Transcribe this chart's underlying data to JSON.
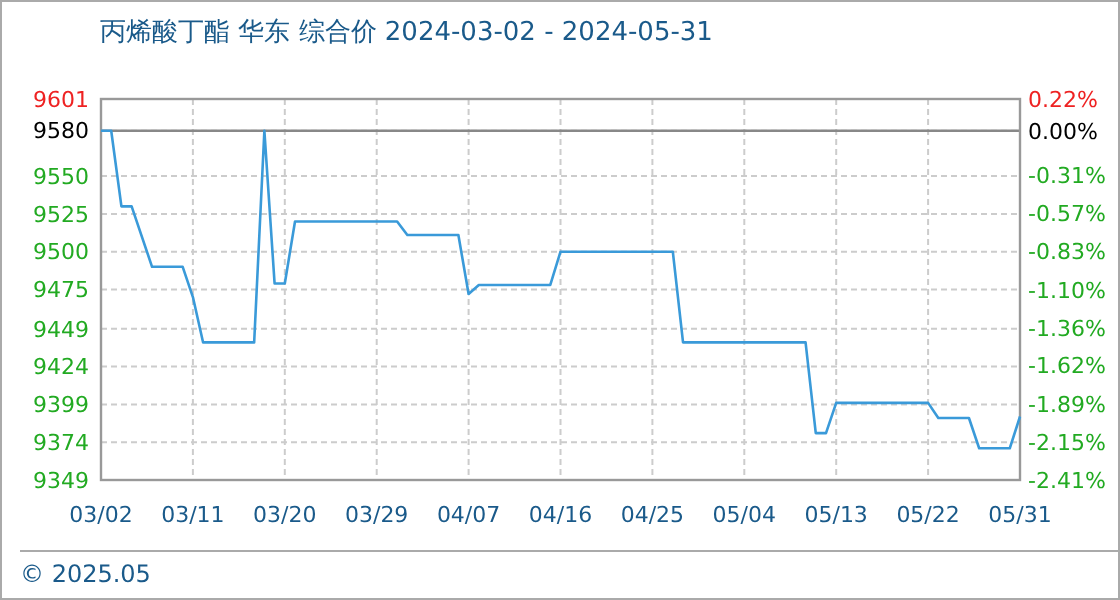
{
  "chart_data": {
    "type": "line",
    "title": "丙烯酸丁酯 华东 综合价 2024-03-02 - 2024-05-31",
    "x": [
      "2024-03-02",
      "2024-03-03",
      "2024-03-04",
      "2024-03-05",
      "2024-03-07",
      "2024-03-10",
      "2024-03-11",
      "2024-03-12",
      "2024-03-17",
      "2024-03-18",
      "2024-03-19",
      "2024-03-20",
      "2024-03-21",
      "2024-03-31",
      "2024-04-01",
      "2024-04-06",
      "2024-04-07",
      "2024-04-08",
      "2024-04-15",
      "2024-04-16",
      "2024-04-27",
      "2024-04-28",
      "2024-05-10",
      "2024-05-11",
      "2024-05-12",
      "2024-05-13",
      "2024-05-22",
      "2024-05-23",
      "2024-05-26",
      "2024-05-27",
      "2024-05-30",
      "2024-05-31"
    ],
    "series": [
      {
        "color": "#3a9ad9",
        "values": [
          9580,
          9580,
          9530,
          9530,
          9490,
          9490,
          9470,
          9440,
          9440,
          9580,
          9479,
          9479,
          9520,
          9520,
          9511,
          9511,
          9472,
          9478,
          9478,
          9500,
          9500,
          9440,
          9440,
          9380,
          9380,
          9400,
          9400,
          9390,
          9390,
          9370,
          9370,
          9391
        ]
      }
    ],
    "xlim": [
      "2024-03-02",
      "2024-05-31"
    ],
    "xticks": [
      {
        "value": "2024-03-02",
        "label": "03/02"
      },
      {
        "value": "2024-03-11",
        "label": "03/11"
      },
      {
        "value": "2024-03-20",
        "label": "03/20"
      },
      {
        "value": "2024-03-29",
        "label": "03/29"
      },
      {
        "value": "2024-04-07",
        "label": "04/07"
      },
      {
        "value": "2024-04-16",
        "label": "04/16"
      },
      {
        "value": "2024-04-25",
        "label": "04/25"
      },
      {
        "value": "2024-05-04",
        "label": "05/04"
      },
      {
        "value": "2024-05-13",
        "label": "05/13"
      },
      {
        "value": "2024-05-22",
        "label": "05/22"
      },
      {
        "value": "2024-05-31",
        "label": "05/31"
      }
    ],
    "ylim": [
      9349,
      9601
    ],
    "yticks": [
      9349,
      9374,
      9399,
      9424,
      9449,
      9475,
      9500,
      9525,
      9550,
      9580,
      9601
    ],
    "y2lim": [
      -2.41,
      0.22
    ],
    "y2ticks": [
      {
        "value": -2.41,
        "label": "-2.41%"
      },
      {
        "value": -2.15,
        "label": "-2.15%"
      },
      {
        "value": -1.89,
        "label": "-1.89%"
      },
      {
        "value": -1.62,
        "label": "-1.62%"
      },
      {
        "value": -1.36,
        "label": "-1.36%"
      },
      {
        "value": -1.1,
        "label": "-1.10%"
      },
      {
        "value": -0.83,
        "label": "-0.83%"
      },
      {
        "value": -0.57,
        "label": "-0.57%"
      },
      {
        "value": -0.31,
        "label": "-0.31%"
      },
      {
        "value": 0,
        "label": "0.00%"
      },
      {
        "value": 0.22,
        "label": "0.22%"
      }
    ],
    "ref_lines": [
      {
        "axis": "y",
        "value": 9580,
        "color": "#888888"
      }
    ],
    "grid": true,
    "line_style": "solid",
    "marker": "none",
    "annotations": [
      "© 2025.05"
    ]
  }
}
